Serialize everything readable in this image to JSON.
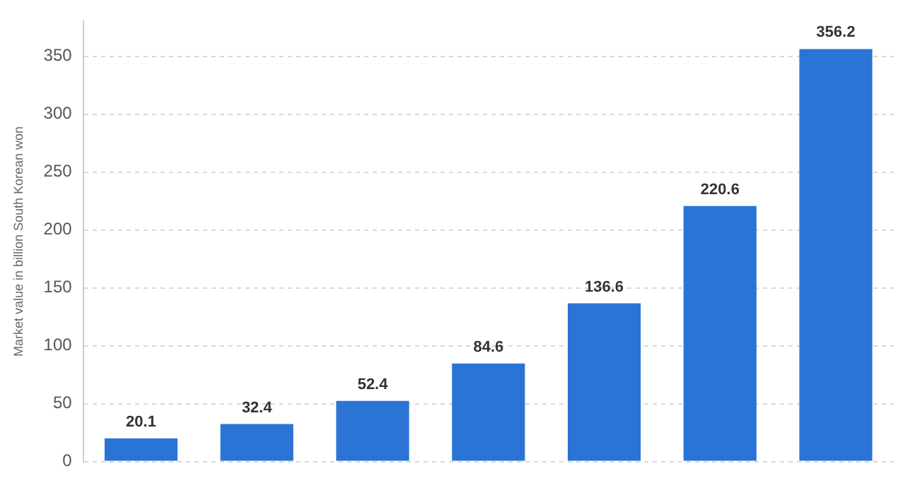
{
  "chart_data": {
    "type": "bar",
    "ylabel": "Market value in billion South Korean won",
    "categories": [
      null,
      null,
      null,
      null,
      null,
      null,
      null
    ],
    "values": [
      20.1,
      32.4,
      52.4,
      84.6,
      136.6,
      220.6,
      356.2
    ],
    "color": "#2b74d6",
    "ylim": [
      0,
      380
    ],
    "yticks": [
      0,
      50,
      100,
      150,
      200,
      250,
      300,
      350
    ],
    "grid": "y",
    "data_labels": true,
    "tick_labels": "y"
  }
}
